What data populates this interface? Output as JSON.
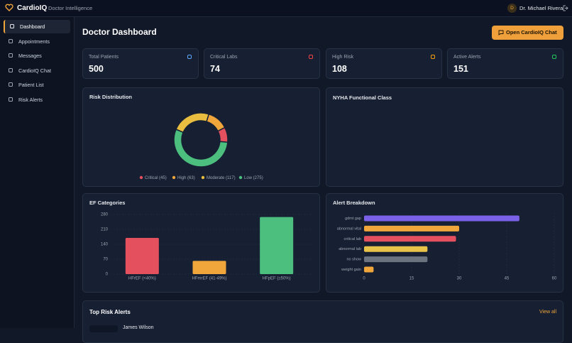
{
  "header": {
    "logo": "CardioIQ",
    "subtitle": "Doctor Intelligence",
    "avatar": "D",
    "user": "Dr. Michael Rivera"
  },
  "nav": [
    "Dashboard",
    "Appointments",
    "Messages",
    "CardioIQ Chat",
    "Patient List",
    "Risk Alerts"
  ],
  "page": {
    "title": "Doctor Dashboard",
    "button": "Open CardioIQ Chat"
  },
  "stats": [
    {
      "label": "Total Patients",
      "value": 500
    },
    {
      "label": "Critical Labs",
      "value": 74
    },
    {
      "label": "High Risk",
      "value": 108
    },
    {
      "label": "Active Alerts",
      "value": 151
    }
  ],
  "nyha": {
    "title": "NYHA Functional Class"
  },
  "chart_data": [
    {
      "type": "donut",
      "title": "Risk Distribution",
      "categories": [
        "Critical",
        "High",
        "Moderate",
        "Low"
      ],
      "values": [
        45,
        63,
        117,
        275
      ],
      "value_labels": [
        "(45)",
        "(63)",
        "(117)",
        "(275)"
      ],
      "colors": [
        "#e5505f",
        "#f0a63a",
        "#e9bd3f",
        "#4cbf7f"
      ]
    },
    {
      "type": "bar",
      "title": "EF Categories",
      "categories": [
        "HFrEF (<40%)",
        "HFmrEF (41-49%)",
        "HFpEF (≥50%)"
      ],
      "values": [
        170,
        62,
        268
      ],
      "colors": [
        "#e5505f",
        "#f0a63a",
        "#4cbf7f"
      ],
      "ylim": [
        0,
        280
      ],
      "yticks": [
        0,
        70,
        140,
        210,
        280
      ],
      "grid": true
    },
    {
      "type": "hbar",
      "title": "Alert Breakdown",
      "categories": [
        "gdmt gap",
        "abnormal vital",
        "critical lab",
        "abnormal lab",
        "no show",
        "weight gain"
      ],
      "values": [
        49,
        30,
        29,
        20,
        20,
        3
      ],
      "colors": [
        "#7b61e8",
        "#f0a63a",
        "#e5505f",
        "#e9c24a",
        "#6b7280",
        "#f0a63a"
      ],
      "xlim": [
        0,
        60
      ],
      "xticks": [
        0,
        15,
        30,
        45,
        60
      ],
      "grid": true
    }
  ],
  "risk_alerts": {
    "title": "Top Risk Alerts",
    "link": "View all",
    "rows": [
      {
        "name": "James Wilson"
      }
    ]
  }
}
